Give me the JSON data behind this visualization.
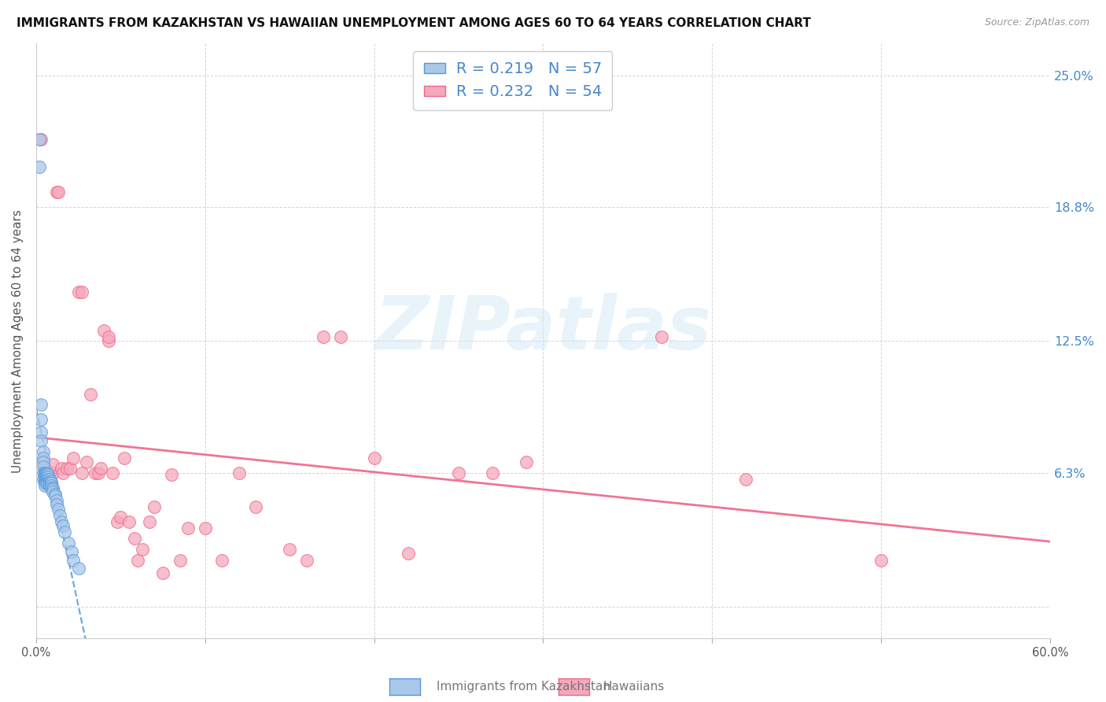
{
  "title": "IMMIGRANTS FROM KAZAKHSTAN VS HAWAIIAN UNEMPLOYMENT AMONG AGES 60 TO 64 YEARS CORRELATION CHART",
  "source": "Source: ZipAtlas.com",
  "ylabel": "Unemployment Among Ages 60 to 64 years",
  "xlabel_blue": "Immigrants from Kazakhstan",
  "xlabel_pink": "Hawaiians",
  "xlim": [
    0.0,
    0.6
  ],
  "ylim": [
    -0.015,
    0.265
  ],
  "yticks": [
    0.0,
    0.063,
    0.125,
    0.188,
    0.25
  ],
  "ytick_labels": [
    "",
    "6.3%",
    "12.5%",
    "18.8%",
    "25.0%"
  ],
  "xticks": [
    0.0,
    0.1,
    0.2,
    0.3,
    0.4,
    0.5,
    0.6
  ],
  "xtick_labels": [
    "0.0%",
    "",
    "",
    "",
    "",
    "",
    "60.0%"
  ],
  "legend_r_blue": "0.219",
  "legend_n_blue": "57",
  "legend_r_pink": "0.232",
  "legend_n_pink": "54",
  "blue_color": "#aac8e8",
  "pink_color": "#f5a8bc",
  "line_blue_color": "#5599dd",
  "line_pink_color": "#ee6688",
  "watermark_text": "ZIPatlas",
  "blue_scatter_x": [
    0.002,
    0.002,
    0.003,
    0.003,
    0.003,
    0.003,
    0.004,
    0.004,
    0.004,
    0.004,
    0.004,
    0.004,
    0.005,
    0.005,
    0.005,
    0.005,
    0.005,
    0.005,
    0.005,
    0.005,
    0.005,
    0.006,
    0.006,
    0.006,
    0.006,
    0.006,
    0.006,
    0.006,
    0.007,
    0.007,
    0.007,
    0.007,
    0.007,
    0.008,
    0.008,
    0.008,
    0.008,
    0.009,
    0.009,
    0.009,
    0.009,
    0.01,
    0.01,
    0.01,
    0.011,
    0.011,
    0.012,
    0.012,
    0.013,
    0.014,
    0.015,
    0.016,
    0.017,
    0.019,
    0.021,
    0.022,
    0.025
  ],
  "blue_scatter_y": [
    0.22,
    0.207,
    0.095,
    0.088,
    0.082,
    0.078,
    0.073,
    0.07,
    0.068,
    0.066,
    0.063,
    0.06,
    0.063,
    0.063,
    0.062,
    0.062,
    0.061,
    0.06,
    0.059,
    0.058,
    0.057,
    0.063,
    0.062,
    0.062,
    0.061,
    0.06,
    0.059,
    0.058,
    0.062,
    0.061,
    0.06,
    0.059,
    0.058,
    0.06,
    0.059,
    0.058,
    0.057,
    0.059,
    0.058,
    0.057,
    0.056,
    0.056,
    0.055,
    0.054,
    0.053,
    0.052,
    0.05,
    0.048,
    0.046,
    0.043,
    0.04,
    0.038,
    0.035,
    0.03,
    0.026,
    0.022,
    0.018
  ],
  "pink_scatter_x": [
    0.003,
    0.005,
    0.007,
    0.008,
    0.01,
    0.01,
    0.012,
    0.013,
    0.015,
    0.016,
    0.018,
    0.02,
    0.022,
    0.025,
    0.027,
    0.027,
    0.03,
    0.032,
    0.035,
    0.037,
    0.038,
    0.04,
    0.043,
    0.043,
    0.045,
    0.048,
    0.05,
    0.052,
    0.055,
    0.058,
    0.06,
    0.063,
    0.067,
    0.07,
    0.075,
    0.08,
    0.085,
    0.09,
    0.1,
    0.11,
    0.12,
    0.13,
    0.15,
    0.16,
    0.17,
    0.18,
    0.2,
    0.22,
    0.25,
    0.27,
    0.29,
    0.37,
    0.42,
    0.5
  ],
  "pink_scatter_y": [
    0.22,
    0.065,
    0.063,
    0.063,
    0.063,
    0.067,
    0.195,
    0.195,
    0.065,
    0.063,
    0.065,
    0.065,
    0.07,
    0.148,
    0.148,
    0.063,
    0.068,
    0.1,
    0.063,
    0.063,
    0.065,
    0.13,
    0.125,
    0.127,
    0.063,
    0.04,
    0.042,
    0.07,
    0.04,
    0.032,
    0.022,
    0.027,
    0.04,
    0.047,
    0.016,
    0.062,
    0.022,
    0.037,
    0.037,
    0.022,
    0.063,
    0.047,
    0.027,
    0.022,
    0.127,
    0.127,
    0.07,
    0.025,
    0.063,
    0.063,
    0.068,
    0.127,
    0.06,
    0.022
  ]
}
